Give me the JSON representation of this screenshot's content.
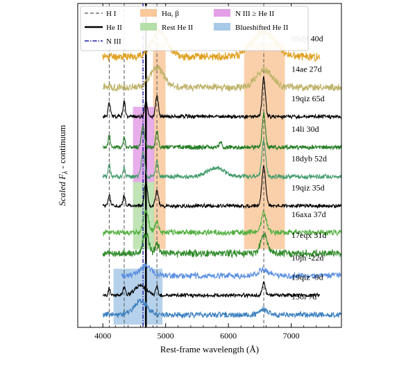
{
  "chart_data": {
    "type": "line",
    "xlabel": "Rest-frame wavelength (Å)",
    "ylabel_main": "Scaled F",
    "ylabel_sub": "λ",
    "ylabel_tail": " - continuum",
    "xlim": [
      3600,
      7800
    ],
    "xticks": [
      4000,
      5000,
      6000,
      7000
    ],
    "xtick_labels": [
      "4000",
      "5000",
      "6000",
      "7000"
    ],
    "ylim": [
      -0.6,
      11.0
    ],
    "legend_position": "top",
    "legend": [
      {
        "label": "H I",
        "kind": "line",
        "style": "dashed",
        "color": "#555555"
      },
      {
        "label": "He II",
        "kind": "line",
        "style": "solid-thick",
        "color": "#000000"
      },
      {
        "label": "N III",
        "kind": "line",
        "style": "dashdot",
        "color": "#1a1aa0"
      },
      {
        "label": "Hα, β",
        "kind": "patch",
        "color": "#f9c89b"
      },
      {
        "label": "Rest He II",
        "kind": "patch",
        "color": "#b5dfa8"
      },
      {
        "label": "N III ≥ He II",
        "kind": "patch",
        "color": "#e3a0e6"
      },
      {
        "label": "Blueshifted He II",
        "kind": "patch",
        "color": "#a8c9e8"
      }
    ],
    "vertical_lines": [
      {
        "x": 4102,
        "type": "H I"
      },
      {
        "x": 4340,
        "type": "H I"
      },
      {
        "x": 4861,
        "type": "H I"
      },
      {
        "x": 6563,
        "type": "H I"
      },
      {
        "x": 4686,
        "type": "He II"
      },
      {
        "x": 4640,
        "type": "N III"
      }
    ],
    "shaded_regions": [
      {
        "type": "Hα, β",
        "x": [
          4800,
          5000
        ],
        "y": [
          2.2,
          9.6
        ]
      },
      {
        "type": "Hα, β",
        "x": [
          6250,
          6900
        ],
        "y": [
          2.2,
          9.6
        ]
      },
      {
        "type": "N III ≥ He II",
        "x": [
          4480,
          4820
        ],
        "y": [
          4.6,
          7.3
        ]
      },
      {
        "type": "Rest He II",
        "x": [
          4480,
          4820
        ],
        "y": [
          2.2,
          4.6
        ]
      },
      {
        "type": "Blueshifted He II",
        "x": [
          4170,
          4950
        ],
        "y": [
          -0.5,
          1.5
        ]
      }
    ],
    "series": [
      {
        "name": "09djl 40d",
        "color": "#e0a01f",
        "x_start": 4000,
        "x_end": 7460,
        "offset": 9.1,
        "features": [
          {
            "center": 4900,
            "width": 120,
            "amp": 0.9
          },
          {
            "center": 6563,
            "width": 180,
            "amp": 0.9
          }
        ],
        "noise": 0.13,
        "seed": 11
      },
      {
        "name": "14ae 27d",
        "color": "#bfb36a",
        "x_start": 4000,
        "x_end": 7800,
        "offset": 8.0,
        "features": [
          {
            "center": 4861,
            "width": 110,
            "amp": 0.7
          },
          {
            "center": 6563,
            "width": 130,
            "amp": 0.6
          }
        ],
        "noise": 0.12,
        "seed": 21
      },
      {
        "name": "19qiz 65d",
        "color": "#000000",
        "x_start": 4000,
        "x_end": 7800,
        "offset": 6.95,
        "features": [
          {
            "center": 4102,
            "width": 18,
            "amp": 0.5
          },
          {
            "center": 4340,
            "width": 18,
            "amp": 0.55
          },
          {
            "center": 4686,
            "width": 22,
            "amp": 0.55
          },
          {
            "center": 4861,
            "width": 22,
            "amp": 0.75
          },
          {
            "center": 6563,
            "width": 25,
            "amp": 1.4
          }
        ],
        "noise": 0.06,
        "seed": 31
      },
      {
        "name": "14li 30d",
        "color": "#1f7a1f",
        "x_start": 4000,
        "x_end": 7800,
        "offset": 5.85,
        "features": [
          {
            "center": 4102,
            "width": 16,
            "amp": 0.45
          },
          {
            "center": 4340,
            "width": 16,
            "amp": 0.35
          },
          {
            "center": 4640,
            "width": 25,
            "amp": 0.7
          },
          {
            "center": 4861,
            "width": 20,
            "amp": 0.6
          },
          {
            "center": 5876,
            "width": 15,
            "amp": 0.25
          },
          {
            "center": 6563,
            "width": 25,
            "amp": 1.2
          }
        ],
        "noise": 0.07,
        "seed": 41
      },
      {
        "name": "18dyb 52d",
        "color": "#3f9a6a",
        "x_start": 4000,
        "x_end": 7800,
        "offset": 4.8,
        "features": [
          {
            "center": 4102,
            "width": 16,
            "amp": 0.45
          },
          {
            "center": 4340,
            "width": 16,
            "amp": 0.3
          },
          {
            "center": 4640,
            "width": 28,
            "amp": 0.85
          },
          {
            "center": 4861,
            "width": 20,
            "amp": 0.55
          },
          {
            "center": 5800,
            "width": 140,
            "amp": 0.3
          },
          {
            "center": 6563,
            "width": 30,
            "amp": 1.3
          }
        ],
        "noise": 0.07,
        "seed": 51
      },
      {
        "name": "19qiz 35d",
        "color": "#000000",
        "x_start": 4000,
        "x_end": 7800,
        "offset": 3.75,
        "features": [
          {
            "center": 4102,
            "width": 18,
            "amp": 0.35
          },
          {
            "center": 4340,
            "width": 18,
            "amp": 0.35
          },
          {
            "center": 4686,
            "width": 25,
            "amp": 0.85
          },
          {
            "center": 4861,
            "width": 22,
            "amp": 0.55
          },
          {
            "center": 6563,
            "width": 30,
            "amp": 1.4
          }
        ],
        "noise": 0.06,
        "seed": 61
      },
      {
        "name": "16axa 37d",
        "color": "#52b040",
        "x_start": 4000,
        "x_end": 7800,
        "offset": 2.8,
        "features": [
          {
            "center": 4686,
            "width": 40,
            "amp": 0.8
          },
          {
            "center": 4861,
            "width": 30,
            "amp": 0.4
          },
          {
            "center": 6563,
            "width": 40,
            "amp": 0.7
          }
        ],
        "noise": 0.09,
        "seed": 71
      },
      {
        "name": "17eqx 31d",
        "color": "#2f8a2a",
        "x_start": 4000,
        "x_end": 7800,
        "offset": 2.05,
        "features": [
          {
            "center": 4686,
            "width": 45,
            "amp": 0.7
          },
          {
            "center": 4861,
            "width": 30,
            "amp": 0.35
          },
          {
            "center": 6563,
            "width": 55,
            "amp": 0.7
          }
        ],
        "noise": 0.12,
        "seed": 81
      },
      {
        "name": "10jh -22d",
        "color": "#5b8fe0",
        "x_start": 4300,
        "x_end": 7800,
        "offset": 1.25,
        "features": [
          {
            "center": 4680,
            "width": 90,
            "amp": 0.35
          },
          {
            "center": 6563,
            "width": 90,
            "amp": 0.2
          }
        ],
        "noise": 0.1,
        "seed": 91
      },
      {
        "name": "19qiz -9d",
        "color": "#000000",
        "x_start": 4000,
        "x_end": 7460,
        "offset": 0.55,
        "features": [
          {
            "center": 4102,
            "width": 15,
            "amp": 0.25
          },
          {
            "center": 4340,
            "width": 18,
            "amp": 0.3
          },
          {
            "center": 4600,
            "width": 90,
            "amp": 0.35
          },
          {
            "center": 4861,
            "width": 20,
            "amp": 0.3
          },
          {
            "center": 6563,
            "width": 25,
            "amp": 0.45
          }
        ],
        "noise": 0.06,
        "seed": 101
      },
      {
        "name": "15oi 7d",
        "color": "#3d80c0",
        "x_start": 4000,
        "x_end": 7800,
        "offset": -0.15,
        "features": [
          {
            "center": 4600,
            "width": 100,
            "amp": 0.5
          },
          {
            "center": 6563,
            "width": 60,
            "amp": 0.2
          }
        ],
        "noise": 0.09,
        "seed": 111
      }
    ]
  }
}
